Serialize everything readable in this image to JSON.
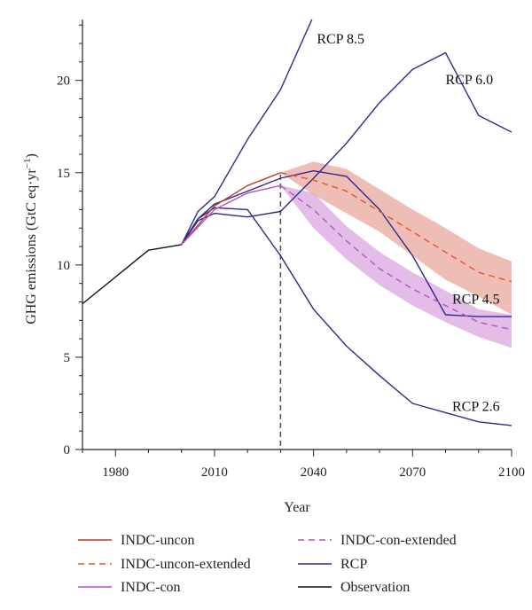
{
  "chart_data": {
    "type": "line",
    "xlabel": "Year",
    "ylabel_main": "GHG emissions (GtC eq·yr",
    "ylabel_sup": "−1",
    "ylabel_close": ")",
    "xlim": [
      1970,
      2100
    ],
    "ylim": [
      0,
      23.3
    ],
    "xticks": [
      1980,
      2010,
      2040,
      2070,
      2100
    ],
    "yticks": [
      0,
      5,
      10,
      15,
      20
    ],
    "grid": false,
    "legend_placement": "bottom",
    "reference_line_x": 2030,
    "colors": {
      "uncon": "#c0392b",
      "uncon_band": "#e8a79e",
      "con": "#b455c4",
      "con_band": "#d9a6e0",
      "rcp": "#2e2a8c",
      "observation": "#111111"
    },
    "series": [
      {
        "key": "observation",
        "name": "Observation",
        "color": "#111111",
        "dash": "",
        "x": [
          1970,
          1990,
          2000
        ],
        "y": [
          7.9,
          10.8,
          11.1
        ]
      },
      {
        "key": "rcp85",
        "name": "RCP",
        "color": "#2e2a8c",
        "dash": "",
        "x": [
          2000,
          2005,
          2010,
          2020,
          2030,
          2040
        ],
        "y": [
          11.1,
          12.9,
          13.7,
          16.8,
          19.5,
          23.5
        ]
      },
      {
        "key": "rcp60",
        "name": "RCP",
        "color": "#2e2a8c",
        "dash": "",
        "x": [
          2000,
          2005,
          2010,
          2020,
          2030,
          2040,
          2050,
          2060,
          2070,
          2080,
          2090,
          2100
        ],
        "y": [
          11.1,
          12.4,
          12.8,
          12.6,
          12.9,
          14.7,
          16.6,
          18.8,
          20.6,
          21.5,
          18.1,
          17.2
        ]
      },
      {
        "key": "rcp45",
        "name": "RCP",
        "color": "#2e2a8c",
        "dash": "",
        "x": [
          2000,
          2005,
          2010,
          2020,
          2030,
          2040,
          2050,
          2060,
          2070,
          2080,
          2090,
          2100
        ],
        "y": [
          11.1,
          12.5,
          13.3,
          14.0,
          14.7,
          15.1,
          14.8,
          13.0,
          10.5,
          7.3,
          7.2,
          7.2
        ]
      },
      {
        "key": "rcp26",
        "name": "RCP",
        "color": "#2e2a8c",
        "dash": "",
        "x": [
          2000,
          2005,
          2010,
          2020,
          2030,
          2040,
          2050,
          2060,
          2070,
          2080,
          2090,
          2100
        ],
        "y": [
          11.1,
          12.5,
          13.1,
          13.0,
          10.5,
          7.6,
          5.6,
          4.0,
          2.5,
          2.0,
          1.5,
          1.3
        ]
      },
      {
        "key": "indc_uncon",
        "name": "INDC-uncon",
        "color": "#c0392b",
        "dash": "",
        "x": [
          2000,
          2010,
          2020,
          2030
        ],
        "y": [
          11.1,
          13.2,
          14.3,
          15.0
        ]
      },
      {
        "key": "indc_con",
        "name": "INDC-con",
        "color": "#b455c4",
        "dash": "",
        "x": [
          2000,
          2010,
          2020,
          2030
        ],
        "y": [
          11.1,
          13.0,
          13.9,
          14.3
        ]
      },
      {
        "key": "indc_uncon_ext",
        "name": "INDC-uncon-extended",
        "color": "#e8532a",
        "dash": "7,5",
        "x": [
          2030,
          2040,
          2050,
          2060,
          2070,
          2080,
          2090,
          2100
        ],
        "y": [
          15.0,
          14.6,
          14.0,
          12.9,
          11.8,
          10.7,
          9.6,
          9.1
        ]
      },
      {
        "key": "indc_con_ext",
        "name": "INDC-con-extended",
        "color": "#b455c4",
        "dash": "7,5",
        "x": [
          2030,
          2040,
          2050,
          2060,
          2070,
          2080,
          2090,
          2100
        ],
        "y": [
          14.3,
          13.0,
          11.3,
          9.8,
          8.7,
          7.8,
          6.9,
          6.5
        ]
      }
    ],
    "bands": [
      {
        "key": "uncon_band",
        "color": "#e8a79e",
        "x": [
          2030,
          2040,
          2050,
          2060,
          2070,
          2080,
          2090,
          2100
        ],
        "upper": [
          15.0,
          15.6,
          15.2,
          14.1,
          13.0,
          12.0,
          10.9,
          10.2
        ],
        "lower": [
          15.0,
          13.8,
          12.8,
          11.8,
          10.5,
          9.2,
          8.3,
          7.3
        ]
      },
      {
        "key": "con_band",
        "color": "#d9a6e0",
        "x": [
          2030,
          2040,
          2050,
          2060,
          2070,
          2080,
          2090,
          2100
        ],
        "upper": [
          14.3,
          13.9,
          12.1,
          10.7,
          9.6,
          8.6,
          7.6,
          7.3
        ],
        "lower": [
          14.3,
          12.0,
          10.3,
          8.9,
          7.8,
          6.9,
          6.1,
          5.5
        ]
      }
    ],
    "annotations": [
      {
        "text": "RCP 8.5",
        "x": 2041,
        "y": 22.0
      },
      {
        "text": "RCP 6.0",
        "x": 2080,
        "y": 19.8
      },
      {
        "text": "RCP 4.5",
        "x": 2082,
        "y": 7.9
      },
      {
        "text": "RCP 2.6",
        "x": 2082,
        "y": 2.1
      }
    ],
    "legend": [
      {
        "label": "INDC-uncon",
        "color": "#c0392b",
        "dash": ""
      },
      {
        "label": "INDC-con-extended",
        "color": "#b455c4",
        "dash": "7,5"
      },
      {
        "label": "INDC-uncon-extended",
        "color": "#e8532a",
        "dash": "7,5"
      },
      {
        "label": "RCP",
        "color": "#2e2a8c",
        "dash": ""
      },
      {
        "label": "INDC-con",
        "color": "#b455c4",
        "dash": ""
      },
      {
        "label": "Observation",
        "color": "#111111",
        "dash": ""
      }
    ]
  }
}
